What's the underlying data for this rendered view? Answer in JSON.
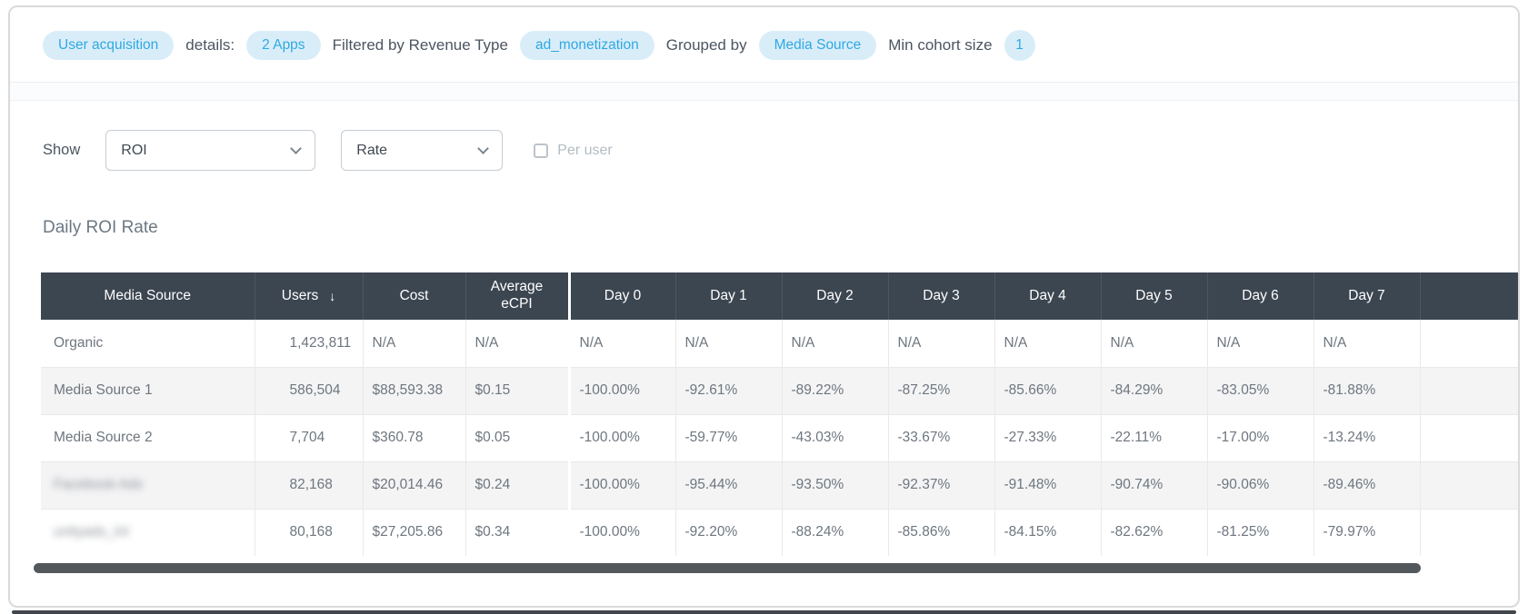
{
  "filter_bar": {
    "segments": [
      {
        "type": "pill",
        "name": "user-acquisition-pill",
        "text": "User acquisition"
      },
      {
        "type": "text",
        "name": "details-label",
        "text": "details:"
      },
      {
        "type": "pill",
        "name": "apps-count-pill",
        "text": "2 Apps"
      },
      {
        "type": "text",
        "name": "filtered-by-label",
        "text": "Filtered by Revenue Type"
      },
      {
        "type": "pill",
        "name": "revenue-type-pill",
        "text": "ad_monetization"
      },
      {
        "type": "text",
        "name": "grouped-by-label",
        "text": "Grouped by"
      },
      {
        "type": "pill",
        "name": "group-by-pill",
        "text": "Media Source"
      },
      {
        "type": "text",
        "name": "min-cohort-label",
        "text": "Min cohort size"
      },
      {
        "type": "pill",
        "name": "min-cohort-value-pill",
        "text": "1",
        "round": true
      }
    ]
  },
  "controls": {
    "show_label": "Show",
    "metric_select": {
      "value": "ROI"
    },
    "rate_select": {
      "value": "Rate"
    },
    "per_user": {
      "label": "Per user",
      "checked": false
    }
  },
  "section_title": "Daily ROI Rate",
  "table": {
    "columns": [
      {
        "label": "Media Source",
        "key": "media-source"
      },
      {
        "label": "Users",
        "key": "users",
        "sort": "desc"
      },
      {
        "label": "Cost",
        "key": "cost"
      },
      {
        "label": "Average eCPI",
        "key": "average-ecpi"
      },
      {
        "label": "Day 0",
        "key": "day-0",
        "first_day": true
      },
      {
        "label": "Day 1",
        "key": "day-1"
      },
      {
        "label": "Day 2",
        "key": "day-2"
      },
      {
        "label": "Day 3",
        "key": "day-3"
      },
      {
        "label": "Day 4",
        "key": "day-4"
      },
      {
        "label": "Day 5",
        "key": "day-5"
      },
      {
        "label": "Day 6",
        "key": "day-6"
      },
      {
        "label": "Day 7",
        "key": "day-7"
      },
      {
        "label": "",
        "key": "spacer"
      }
    ],
    "rows": [
      {
        "media_source": "Organic",
        "blurred": false,
        "values": [
          "1,423,811",
          "N/A",
          "N/A",
          "N/A",
          "N/A",
          "N/A",
          "N/A",
          "N/A",
          "N/A",
          "N/A",
          "N/A"
        ]
      },
      {
        "media_source": "Media Source 1",
        "blurred": false,
        "values": [
          "586,504",
          "$88,593.38",
          "$0.15",
          "-100.00%",
          "-92.61%",
          "-89.22%",
          "-87.25%",
          "-85.66%",
          "-84.29%",
          "-83.05%",
          "-81.88%"
        ]
      },
      {
        "media_source": "Media Source 2",
        "blurred": false,
        "values": [
          "7,704",
          "$360.78",
          "$0.05",
          "-100.00%",
          "-59.77%",
          "-43.03%",
          "-33.67%",
          "-27.33%",
          "-22.11%",
          "-17.00%",
          "-13.24%"
        ]
      },
      {
        "media_source": "Facebook Ads",
        "blurred": true,
        "values": [
          "82,168",
          "$20,014.46",
          "$0.24",
          "-100.00%",
          "-95.44%",
          "-93.50%",
          "-92.37%",
          "-91.48%",
          "-90.74%",
          "-90.06%",
          "-89.46%"
        ]
      },
      {
        "media_source": "unityads_int",
        "blurred": true,
        "values": [
          "80,168",
          "$27,205.86",
          "$0.34",
          "-100.00%",
          "-92.20%",
          "-88.24%",
          "-85.86%",
          "-84.15%",
          "-82.62%",
          "-81.25%",
          "-79.97%"
        ]
      }
    ]
  },
  "colors": {
    "accent_blue": "#2FA9E1",
    "pill_bg": "#D9EDF9",
    "table_header_bg": "#3C4651",
    "row_alt_bg": "#F4F4F5",
    "body_text": "#6E767E",
    "scrollbar_thumb": "#53585D"
  }
}
